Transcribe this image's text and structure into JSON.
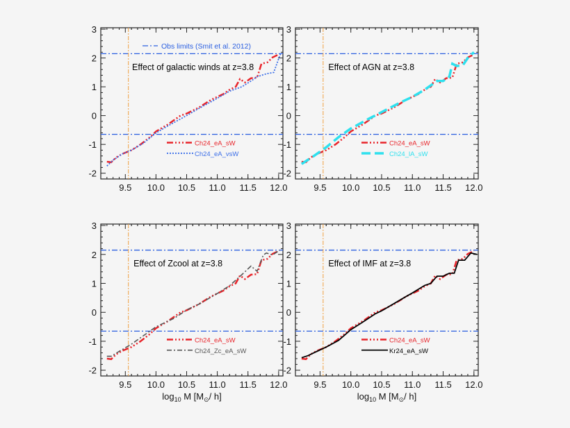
{
  "chart_data": [
    {
      "type": "line",
      "annotation": "Effect of galactic winds at z=3.8",
      "obs_legend": "Obs limits (Smit et al. 2012)",
      "xlabel": "",
      "xlim": [
        9.1,
        12.07
      ],
      "ylim": [
        -2.2,
        3.05
      ],
      "xticks": [
        "9.5",
        "10.0",
        "10.5",
        "11.0",
        "11.5",
        "12.0"
      ],
      "yticks": [
        "3",
        "2",
        "1",
        "0",
        "-1",
        "-2"
      ],
      "hlines": [
        2.15,
        -0.65
      ],
      "vline": 9.55,
      "series": [
        {
          "name": "Ch24_eA_sW",
          "color": "#e8242a",
          "style": "dashdotdotdot",
          "x": [
            9.2,
            9.27,
            9.35,
            9.45,
            9.6,
            9.75,
            9.9,
            10.0,
            10.2,
            10.4,
            10.5,
            10.7,
            10.9,
            11.1,
            11.2,
            11.3,
            11.37,
            11.45,
            11.55,
            11.65,
            11.72,
            11.82,
            11.9,
            12.0
          ],
          "y": [
            -1.6,
            -1.62,
            -1.45,
            -1.33,
            -1.2,
            -1.0,
            -0.75,
            -0.55,
            -0.3,
            0.0,
            0.07,
            0.28,
            0.55,
            0.75,
            0.9,
            1.0,
            1.27,
            1.15,
            1.3,
            1.32,
            1.8,
            1.85,
            2.02,
            2.12
          ]
        },
        {
          "name": "Ch24_eA_vsW",
          "color": "#3b6ee8",
          "style": "dotted",
          "x": [
            9.2,
            9.3,
            9.45,
            9.6,
            9.8,
            10.0,
            10.2,
            10.5,
            10.7,
            11.0,
            11.2,
            11.4,
            11.55,
            11.65,
            11.8,
            11.92,
            12.03
          ],
          "y": [
            -1.75,
            -1.55,
            -1.33,
            -1.2,
            -0.95,
            -0.6,
            -0.35,
            0.0,
            0.25,
            0.6,
            0.85,
            1.0,
            1.2,
            1.35,
            1.45,
            1.5,
            2.15
          ]
        }
      ]
    },
    {
      "type": "line",
      "annotation": "Effect of AGN at z=3.8",
      "xlabel": "",
      "xlim": [
        9.1,
        12.07
      ],
      "ylim": [
        -2.2,
        3.05
      ],
      "xticks": [
        "9.5",
        "10.0",
        "10.5",
        "11.0",
        "11.5",
        "12.0"
      ],
      "yticks": [
        "3",
        "2",
        "1",
        "0",
        "-1",
        "-2"
      ],
      "hlines": [
        2.15,
        -0.65
      ],
      "vline": 9.55,
      "series": [
        {
          "name": "Ch24_eA_sW",
          "color": "#e8242a",
          "style": "dashdotdotdot",
          "x": [
            9.2,
            9.27,
            9.35,
            9.45,
            9.6,
            9.75,
            9.9,
            10.0,
            10.2,
            10.4,
            10.5,
            10.7,
            10.9,
            11.1,
            11.2,
            11.3,
            11.37,
            11.45,
            11.55,
            11.65,
            11.72,
            11.82,
            11.9,
            12.0
          ],
          "y": [
            -1.6,
            -1.62,
            -1.45,
            -1.33,
            -1.2,
            -1.0,
            -0.75,
            -0.55,
            -0.3,
            0.0,
            0.07,
            0.28,
            0.55,
            0.75,
            0.9,
            1.0,
            1.27,
            1.15,
            1.3,
            1.32,
            1.8,
            1.85,
            2.02,
            2.12
          ]
        },
        {
          "name": "Ch24_lA_sW",
          "color": "#2ee0ee",
          "style": "dashed",
          "x": [
            9.2,
            9.4,
            9.6,
            9.8,
            10.0,
            10.3,
            10.5,
            10.8,
            11.0,
            11.2,
            11.3,
            11.4,
            11.5,
            11.6,
            11.65,
            11.72,
            11.82,
            11.9,
            12.0
          ],
          "y": [
            -1.68,
            -1.4,
            -1.1,
            -0.75,
            -0.45,
            -0.1,
            0.12,
            0.45,
            0.65,
            0.9,
            1.05,
            1.2,
            1.2,
            1.35,
            1.8,
            1.72,
            1.75,
            2.0,
            2.2
          ]
        }
      ]
    },
    {
      "type": "line",
      "annotation": "Effect of Zcool at z=3.8",
      "xlabel": "log10 M [M⊙/ h]",
      "xlim": [
        9.1,
        12.07
      ],
      "ylim": [
        -2.2,
        3.05
      ],
      "xticks": [
        "9.5",
        "10.0",
        "10.5",
        "11.0",
        "11.5",
        "12.0"
      ],
      "yticks": [
        "3",
        "2",
        "1",
        "0",
        "-1",
        "-2"
      ],
      "hlines": [
        2.15,
        -0.65
      ],
      "vline": 9.55,
      "series": [
        {
          "name": "Ch24_eA_sW",
          "color": "#e8242a",
          "style": "dashdotdotdot",
          "x": [
            9.2,
            9.27,
            9.35,
            9.45,
            9.6,
            9.75,
            9.9,
            10.0,
            10.2,
            10.4,
            10.5,
            10.7,
            10.9,
            11.1,
            11.2,
            11.3,
            11.37,
            11.45,
            11.55,
            11.65,
            11.72,
            11.82,
            11.9,
            12.0
          ],
          "y": [
            -1.6,
            -1.62,
            -1.45,
            -1.33,
            -1.2,
            -1.0,
            -0.75,
            -0.55,
            -0.3,
            0.0,
            0.07,
            0.28,
            0.55,
            0.75,
            0.9,
            1.0,
            1.27,
            1.15,
            1.3,
            1.32,
            1.8,
            1.85,
            2.02,
            2.12
          ]
        },
        {
          "name": "Ch24_Zc_eA_sW",
          "color": "#555555",
          "style": "dashdot",
          "x": [
            9.2,
            9.27,
            9.4,
            9.6,
            9.8,
            10.0,
            10.3,
            10.5,
            10.7,
            11.0,
            11.2,
            11.4,
            11.55,
            11.65,
            11.75,
            11.8,
            11.9,
            12.02
          ],
          "y": [
            -1.52,
            -1.52,
            -1.35,
            -1.1,
            -0.8,
            -0.5,
            -0.2,
            0.08,
            0.28,
            0.65,
            0.92,
            1.3,
            1.6,
            1.42,
            1.98,
            2.05,
            1.98,
            2.15
          ]
        }
      ]
    },
    {
      "type": "line",
      "annotation": "Effect of IMF at z=3.8",
      "xlabel": "log10 M [M⊙/ h]",
      "xlim": [
        9.1,
        12.07
      ],
      "ylim": [
        -2.2,
        3.05
      ],
      "xticks": [
        "9.5",
        "10.0",
        "10.5",
        "11.0",
        "11.5",
        "12.0"
      ],
      "yticks": [
        "3",
        "2",
        "1",
        "0",
        "-1",
        "-2"
      ],
      "hlines": [
        2.15,
        -0.65
      ],
      "vline": 9.55,
      "series": [
        {
          "name": "Ch24_eA_sW",
          "color": "#e8242a",
          "style": "dashdotdotdot",
          "x": [
            9.2,
            9.27,
            9.35,
            9.45,
            9.6,
            9.75,
            9.9,
            10.0,
            10.2,
            10.4,
            10.5,
            10.7,
            10.9,
            11.1,
            11.2,
            11.3,
            11.37,
            11.45,
            11.55,
            11.65,
            11.72,
            11.82,
            11.9,
            12.0
          ],
          "y": [
            -1.6,
            -1.62,
            -1.45,
            -1.33,
            -1.2,
            -1.0,
            -0.75,
            -0.55,
            -0.3,
            0.0,
            0.07,
            0.28,
            0.55,
            0.75,
            0.9,
            1.0,
            1.27,
            1.15,
            1.3,
            1.32,
            1.8,
            1.85,
            2.02,
            2.12
          ]
        },
        {
          "name": "Kr24_eA_sW",
          "color": "#000000",
          "style": "solid",
          "x": [
            9.2,
            9.3,
            9.45,
            9.6,
            9.8,
            10.0,
            10.2,
            10.4,
            10.5,
            10.7,
            10.9,
            11.0,
            11.2,
            11.3,
            11.4,
            11.5,
            11.6,
            11.68,
            11.75,
            11.85,
            11.95,
            12.05
          ],
          "y": [
            -1.57,
            -1.5,
            -1.35,
            -1.2,
            -0.97,
            -0.6,
            -0.33,
            -0.05,
            0.05,
            0.3,
            0.55,
            0.67,
            0.93,
            1.0,
            1.25,
            1.25,
            1.35,
            1.35,
            1.8,
            1.8,
            2.05,
            2.0
          ]
        }
      ]
    }
  ],
  "colors": {
    "obs_line": "#2b5fe0",
    "vline": "#f0a040"
  }
}
